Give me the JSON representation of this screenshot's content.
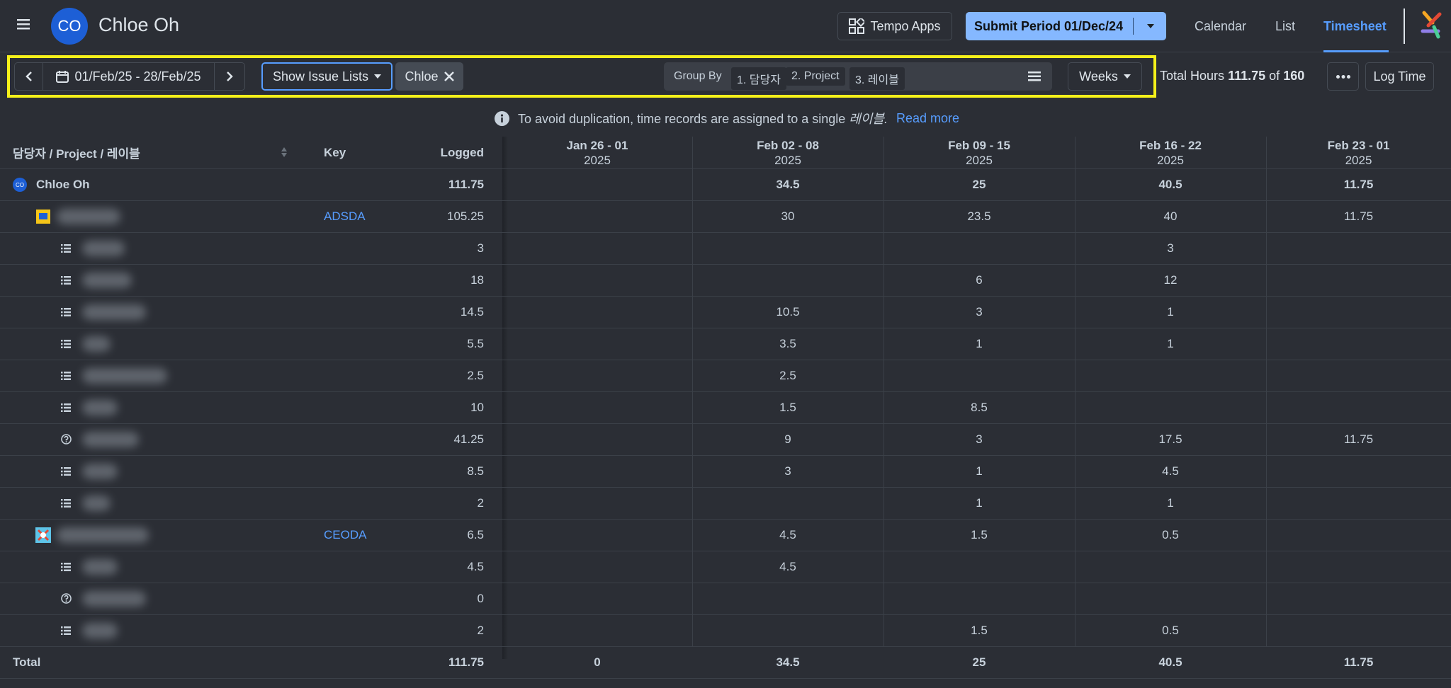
{
  "header": {
    "user_initials": "CO",
    "user_name": "Chloe Oh",
    "apps": "Tempo Apps",
    "submit": "Submit Period 01/Dec/24",
    "nav": [
      "Calendar",
      "List",
      "Timesheet"
    ]
  },
  "toolbar": {
    "period": "01/Feb/25 - 28/Feb/25",
    "show": "Show Issue Lists",
    "filter": "Chloe",
    "group_by": "Group By",
    "groups": [
      "1. 담당자",
      "2. Project",
      "3. 레이블"
    ],
    "view": "Weeks",
    "total_label": "Total Hours",
    "total_hours": 111.75,
    "of": "of",
    "capacity": 160,
    "log": "Log Time"
  },
  "notice": {
    "text": "To avoid duplication, time records are assigned to a single",
    "em": "레이블.",
    "link": "Read more"
  },
  "table": {
    "columns": {
      "name": "담당자 / Project / 레이블",
      "key": "Key",
      "logged": "Logged",
      "weeks": [
        {
          "range": "Jan 26 - 01",
          "year": "2025"
        },
        {
          "range": "Feb 02 - 08",
          "year": "2025"
        },
        {
          "range": "Feb 09 - 15",
          "year": "2025"
        },
        {
          "range": "Feb 16 - 22",
          "year": "2025"
        },
        {
          "range": "Feb 23 - 01",
          "year": "2025"
        }
      ]
    },
    "rows": [
      {
        "label": "Chloe Oh",
        "icon": "user",
        "level": 0,
        "logged": 111.75,
        "weeks": [
          null,
          34.5,
          25,
          40.5,
          11.75
        ]
      },
      {
        "icon": "project",
        "level": 1,
        "key": "ADSDA",
        "logged": 105.25,
        "weeks": [
          null,
          30,
          23.5,
          40,
          11.75
        ]
      },
      {
        "icon": "list",
        "level": 2,
        "logged": 3,
        "weeks": [
          null,
          null,
          null,
          3,
          null
        ]
      },
      {
        "icon": "list",
        "level": 2,
        "logged": 18,
        "weeks": [
          null,
          null,
          6,
          12,
          null
        ]
      },
      {
        "icon": "list",
        "level": 2,
        "logged": 14.5,
        "weeks": [
          null,
          10.5,
          3,
          1,
          null
        ]
      },
      {
        "icon": "list",
        "level": 2,
        "logged": 5.5,
        "weeks": [
          null,
          3.5,
          1,
          1,
          null
        ]
      },
      {
        "icon": "list",
        "level": 2,
        "logged": 2.5,
        "weeks": [
          null,
          2.5,
          null,
          null,
          null
        ]
      },
      {
        "icon": "list",
        "level": 2,
        "logged": 10,
        "weeks": [
          null,
          1.5,
          8.5,
          null,
          null
        ]
      },
      {
        "icon": "question",
        "level": 2,
        "logged": 41.25,
        "weeks": [
          null,
          9,
          3,
          17.5,
          11.75
        ]
      },
      {
        "icon": "list",
        "level": 2,
        "logged": 8.5,
        "weeks": [
          null,
          3,
          1,
          4.5,
          null
        ]
      },
      {
        "icon": "list",
        "level": 2,
        "logged": 2,
        "weeks": [
          null,
          null,
          1,
          1,
          null
        ]
      },
      {
        "icon": "project2",
        "level": 1,
        "key": "CEODA",
        "logged": 6.5,
        "weeks": [
          null,
          4.5,
          1.5,
          0.5,
          null
        ]
      },
      {
        "icon": "list",
        "level": 2,
        "logged": 4.5,
        "weeks": [
          null,
          4.5,
          null,
          null,
          null
        ]
      },
      {
        "icon": "question",
        "level": 2,
        "logged": 0,
        "weeks": [
          null,
          null,
          null,
          null,
          null
        ]
      },
      {
        "icon": "list",
        "level": 2,
        "logged": 2,
        "weeks": [
          null,
          null,
          1.5,
          0.5,
          null
        ]
      }
    ],
    "total": {
      "label": "Total",
      "logged": 111.75,
      "weeks": [
        0,
        34.5,
        25,
        40.5,
        11.75
      ]
    }
  }
}
